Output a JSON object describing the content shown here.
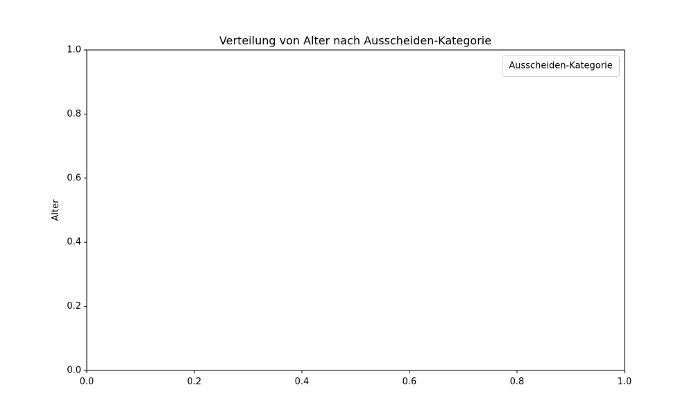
{
  "chart_data": {
    "type": "box",
    "title": "Verteilung von Alter nach Ausscheiden-Kategorie",
    "xlabel": "",
    "ylabel": "Alter",
    "xlim": [
      0.0,
      1.0
    ],
    "ylim": [
      0.0,
      1.0
    ],
    "x_ticks": [
      0.0,
      0.2,
      0.4,
      0.6,
      0.8,
      1.0
    ],
    "x_tick_labels": [
      "0.0",
      "0.2",
      "0.4",
      "0.6",
      "0.8",
      "1.0"
    ],
    "y_ticks": [
      0.0,
      0.2,
      0.4,
      0.6,
      0.8,
      1.0
    ],
    "y_tick_labels": [
      "0.0",
      "0.2",
      "0.4",
      "0.6",
      "0.8",
      "1.0"
    ],
    "grid": false,
    "categories": [],
    "series": [],
    "legend": {
      "title": "Ausscheiden-Kategorie",
      "placement": "top-right",
      "entries": []
    },
    "colors": {
      "axis": "#000000",
      "background": "#ffffff",
      "legend_border": "#cccccc"
    }
  }
}
